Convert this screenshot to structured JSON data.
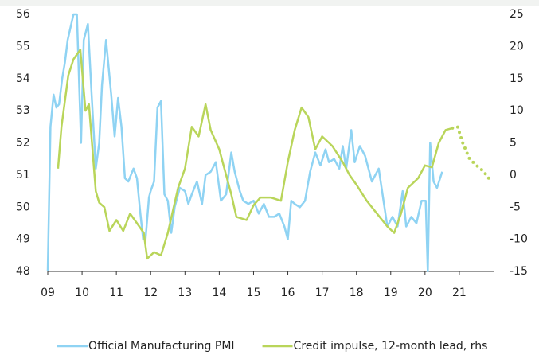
{
  "chart_data": {
    "type": "line",
    "xlim": [
      2009,
      2022
    ],
    "xticks": [
      {
        "value": 2009,
        "label": "09"
      },
      {
        "value": 2010,
        "label": "10"
      },
      {
        "value": 2011,
        "label": "11"
      },
      {
        "value": 2012,
        "label": "12"
      },
      {
        "value": 2013,
        "label": "13"
      },
      {
        "value": 2014,
        "label": "14"
      },
      {
        "value": 2015,
        "label": "15"
      },
      {
        "value": 2016,
        "label": "16"
      },
      {
        "value": 2017,
        "label": "17"
      },
      {
        "value": 2018,
        "label": "18"
      },
      {
        "value": 2019,
        "label": "19"
      },
      {
        "value": 2020,
        "label": "20"
      },
      {
        "value": 2021,
        "label": "21"
      }
    ],
    "ylim": [
      48,
      56
    ],
    "yticks": [
      48,
      49,
      50,
      51,
      52,
      53,
      54,
      55,
      56
    ],
    "y2lim": [
      -15,
      25
    ],
    "y2ticks": [
      -15,
      -10,
      -5,
      0,
      5,
      10,
      15,
      20,
      25
    ],
    "series": [
      {
        "name": "Official Manufacturing PMI",
        "color": "#8fd3f3",
        "x": [
          2009.0,
          2009.08,
          2009.17,
          2009.25,
          2009.33,
          2009.42,
          2009.5,
          2009.58,
          2009.75,
          2009.85,
          2009.97,
          2010.05,
          2010.17,
          2010.28,
          2010.4,
          2010.5,
          2010.58,
          2010.7,
          2010.85,
          2010.95,
          2011.05,
          2011.15,
          2011.25,
          2011.35,
          2011.5,
          2011.6,
          2011.7,
          2011.78,
          2011.85,
          2011.95,
          2012.0,
          2012.1,
          2012.2,
          2012.3,
          2012.4,
          2012.5,
          2012.6,
          2012.7,
          2012.85,
          2013.0,
          2013.1,
          2013.2,
          2013.35,
          2013.5,
          2013.6,
          2013.75,
          2013.9,
          2014.05,
          2014.2,
          2014.35,
          2014.45,
          2014.6,
          2014.7,
          2014.85,
          2015.0,
          2015.15,
          2015.3,
          2015.45,
          2015.6,
          2015.75,
          2015.9,
          2016.0,
          2016.1,
          2016.2,
          2016.35,
          2016.5,
          2016.65,
          2016.8,
          2016.95,
          2017.1,
          2017.2,
          2017.35,
          2017.5,
          2017.6,
          2017.7,
          2017.85,
          2017.95,
          2018.1,
          2018.25,
          2018.45,
          2018.65,
          2018.9,
          2019.05,
          2019.2,
          2019.35,
          2019.45,
          2019.6,
          2019.75,
          2019.9,
          2020.02,
          2020.08,
          2020.15,
          2020.25,
          2020.35,
          2020.5
        ],
        "values": [
          48,
          52.5,
          53.5,
          53.1,
          53.2,
          54,
          54.5,
          55.2,
          56,
          56,
          52,
          55.2,
          55.7,
          53.5,
          51.2,
          52,
          53.8,
          55.2,
          53.5,
          52.2,
          53.4,
          52.5,
          50.9,
          50.8,
          51.2,
          50.9,
          49.8,
          49,
          49,
          50.3,
          50.5,
          50.8,
          53.1,
          53.3,
          50.4,
          50.2,
          49.2,
          50,
          50.6,
          50.5,
          50.1,
          50.4,
          50.8,
          50.1,
          51,
          51.1,
          51.4,
          50.2,
          50.4,
          51.7,
          51.1,
          50.5,
          50.2,
          50.1,
          50.2,
          49.8,
          50.1,
          49.7,
          49.7,
          49.8,
          49.4,
          49,
          50.2,
          50.1,
          50,
          50.2,
          51.1,
          51.7,
          51.3,
          51.8,
          51.4,
          51.5,
          51.2,
          51.9,
          51.2,
          52.4,
          51.4,
          51.9,
          51.6,
          50.8,
          51.2,
          49.4,
          49.7,
          49.4,
          50.5,
          49.4,
          49.7,
          49.5,
          50.2,
          50.2,
          48,
          52,
          50.8,
          50.6,
          51.1
        ]
      },
      {
        "name": "Credit impulse, 12-month lead, rhs",
        "color": "#b9d55a",
        "axis": "y2",
        "x": [
          2009.3,
          2009.4,
          2009.6,
          2009.75,
          2009.95,
          2010.1,
          2010.2,
          2010.4,
          2010.5,
          2010.65,
          2010.8,
          2011.0,
          2011.2,
          2011.4,
          2011.6,
          2011.8,
          2011.9,
          2012.1,
          2012.3,
          2012.5,
          2012.8,
          2013.0,
          2013.2,
          2013.4,
          2013.6,
          2013.75,
          2014.0,
          2014.2,
          2014.35,
          2014.5,
          2014.8,
          2015.0,
          2015.2,
          2015.5,
          2015.8,
          2016.0,
          2016.2,
          2016.4,
          2016.6,
          2016.8,
          2017.0,
          2017.3,
          2017.6,
          2017.8,
          2018.0,
          2018.3,
          2018.6,
          2018.9,
          2019.1,
          2019.3,
          2019.5,
          2019.8,
          2020.0,
          2020.2,
          2020.4,
          2020.6,
          2020.8
        ],
        "values": [
          1,
          7.5,
          15.5,
          18,
          19.5,
          10,
          11,
          -2.5,
          -4.3,
          -5,
          -8.7,
          -7,
          -8.7,
          -6,
          -7.5,
          -9,
          -13,
          -12,
          -12.5,
          -9,
          -2,
          1,
          7.5,
          6,
          11,
          7,
          4,
          0,
          -3,
          -6.5,
          -7,
          -4.7,
          -3.5,
          -3.5,
          -4,
          2,
          7,
          10.5,
          9,
          4,
          6,
          4.5,
          2,
          0,
          -1.5,
          -4,
          -6,
          -8,
          -9,
          -6,
          -2,
          -0.5,
          1.5,
          1.2,
          5,
          7,
          7.3
        ]
      },
      {
        "color": "#b9d55a",
        "axis": "y2",
        "dotted": true,
        "x": [
          2020.8,
          2020.95,
          2021.1,
          2021.3,
          2021.5,
          2021.7,
          2021.9
        ],
        "values": [
          7.3,
          7.5,
          5,
          2.5,
          1.5,
          0.6,
          -0.8
        ]
      }
    ]
  }
}
